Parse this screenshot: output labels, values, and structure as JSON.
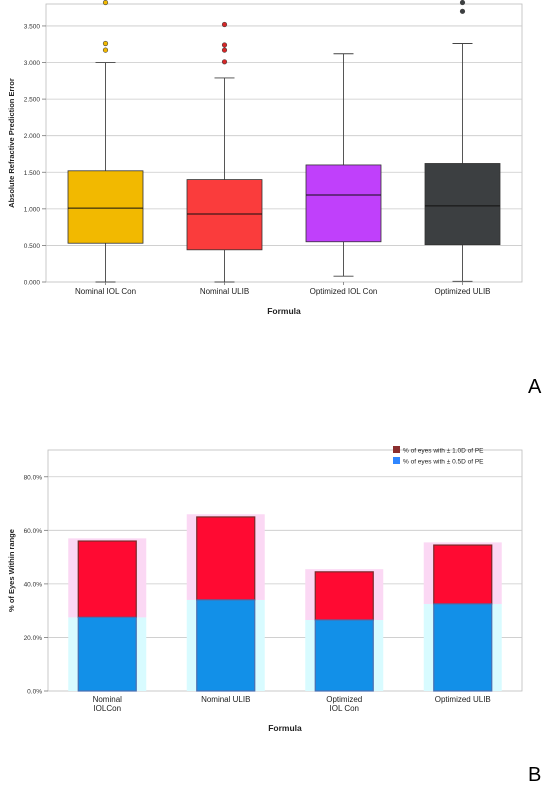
{
  "panel_labels": [
    "A",
    "B"
  ],
  "chart_data": [
    {
      "type": "box",
      "ylabel": "Absolute Refractive Prediction Error",
      "xlabel": "Formula",
      "ylim": [
        0,
        3.8
      ],
      "yticks": [
        0,
        0.5,
        1.0,
        1.5,
        2.0,
        2.5,
        3.0,
        3.5
      ],
      "ytick_labels": [
        "0.000",
        "0.500",
        "1.000",
        "1.500",
        "2.000",
        "2.500",
        "3.000",
        "3.500"
      ],
      "grid": true,
      "categories": [
        "Nominal IOL Con",
        "Nominal ULIB",
        "Optimized IOL Con",
        "Optimized ULIB"
      ],
      "boxes": [
        {
          "min": 0.0,
          "q1": 0.53,
          "median": 1.01,
          "q3": 1.52,
          "max": 3.0,
          "outliers": [
            3.17,
            3.26,
            3.82
          ],
          "color": "#f2b900",
          "outlier_color": "#f2b900"
        },
        {
          "min": 0.0,
          "q1": 0.44,
          "median": 0.93,
          "q3": 1.4,
          "max": 2.79,
          "outliers": [
            3.01,
            3.17,
            3.24,
            3.52
          ],
          "color": "#fa3c3c",
          "outlier_color": "#d62728"
        },
        {
          "min": 0.08,
          "q1": 0.55,
          "median": 1.19,
          "q3": 1.6,
          "max": 3.12,
          "outliers": [],
          "color": "#c040fb",
          "outlier_color": "#c040fb"
        },
        {
          "min": 0.01,
          "q1": 0.51,
          "median": 1.04,
          "q3": 1.62,
          "max": 3.26,
          "outliers": [
            3.7,
            3.82
          ],
          "color": "#3c3f41",
          "outlier_color": "#3c3f41"
        }
      ]
    },
    {
      "type": "bar",
      "stacked": true,
      "ylabel": "% of Eyes Within range",
      "xlabel": "Formula",
      "ylim": [
        0,
        90
      ],
      "yticks": [
        0,
        20,
        40,
        60,
        80
      ],
      "ytick_labels": [
        "0.0%",
        "20.0%",
        "40.0%",
        "60.0%",
        "80.0%"
      ],
      "grid": true,
      "legend_position": "top-right",
      "categories": [
        "Nominal\nIOLCon",
        "Nominal ULIB",
        "Optimized\nIOL Con",
        "Optimized ULIB"
      ],
      "series": [
        {
          "name": "% of eyes with ± 0.5D of PE",
          "values": [
            27.5,
            34.0,
            26.5,
            32.5
          ],
          "color": "#1290e8",
          "legend_color": "#2f86ff"
        },
        {
          "name": "% of eyes with ± 1.0D of PE",
          "values": [
            56.0,
            65.0,
            44.5,
            54.5
          ],
          "color": "#ff0a32",
          "legend_color": "#8b2e2e"
        }
      ]
    }
  ]
}
